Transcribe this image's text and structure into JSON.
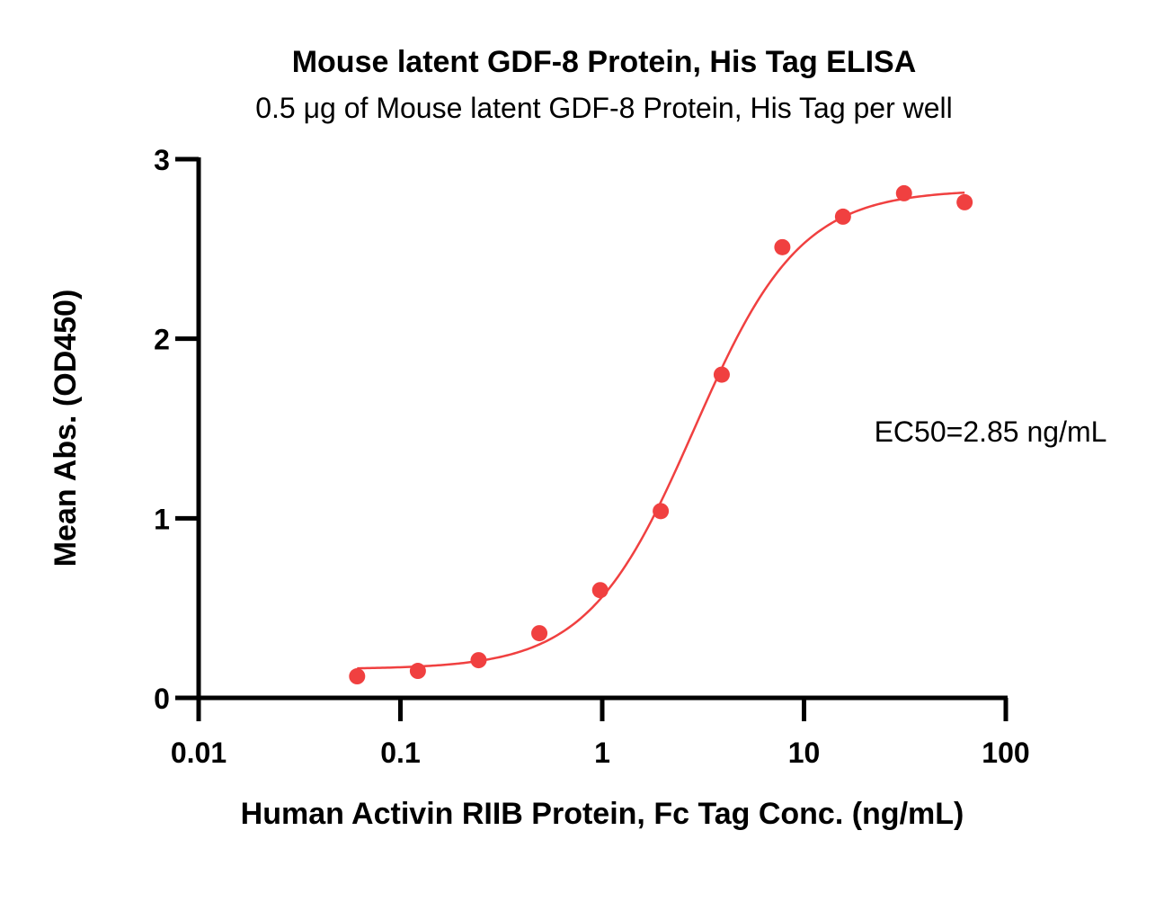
{
  "chart_data": {
    "type": "scatter",
    "title": "Mouse latent GDF-8 Protein, His Tag ELISA",
    "subtitle": "0.5 μg of Mouse latent GDF-8 Protein, His Tag per well",
    "xlabel": "Human Activin RIIB Protein, Fc Tag Conc. (ng/mL)",
    "ylabel": "Mean Abs. (OD450)",
    "xscale": "log",
    "xlim": [
      0.01,
      100
    ],
    "ylim": [
      0,
      3
    ],
    "xticks": [
      0.01,
      0.1,
      1,
      10,
      100
    ],
    "xtick_labels": [
      "0.01",
      "0.1",
      "1",
      "10",
      "100"
    ],
    "yticks": [
      0,
      1,
      2,
      3
    ],
    "ytick_labels": [
      "0",
      "1",
      "2",
      "3"
    ],
    "grid": false,
    "legend": "none",
    "annotation": "EC50=2.85 ng/mL",
    "color": "#f04040",
    "series": [
      {
        "x": [
          0.061,
          0.122,
          0.244,
          0.488,
          0.977,
          1.95,
          3.91,
          7.81,
          15.6,
          31.3,
          62.5
        ],
        "y": [
          0.12,
          0.15,
          0.21,
          0.36,
          0.6,
          1.04,
          1.8,
          2.51,
          2.68,
          2.81,
          2.76
        ]
      }
    ],
    "fit": {
      "model": "4PL",
      "bottom": 0.16,
      "top": 2.83,
      "ec50": 2.85,
      "hill": 1.65,
      "x_range": [
        0.061,
        62.5
      ]
    }
  }
}
